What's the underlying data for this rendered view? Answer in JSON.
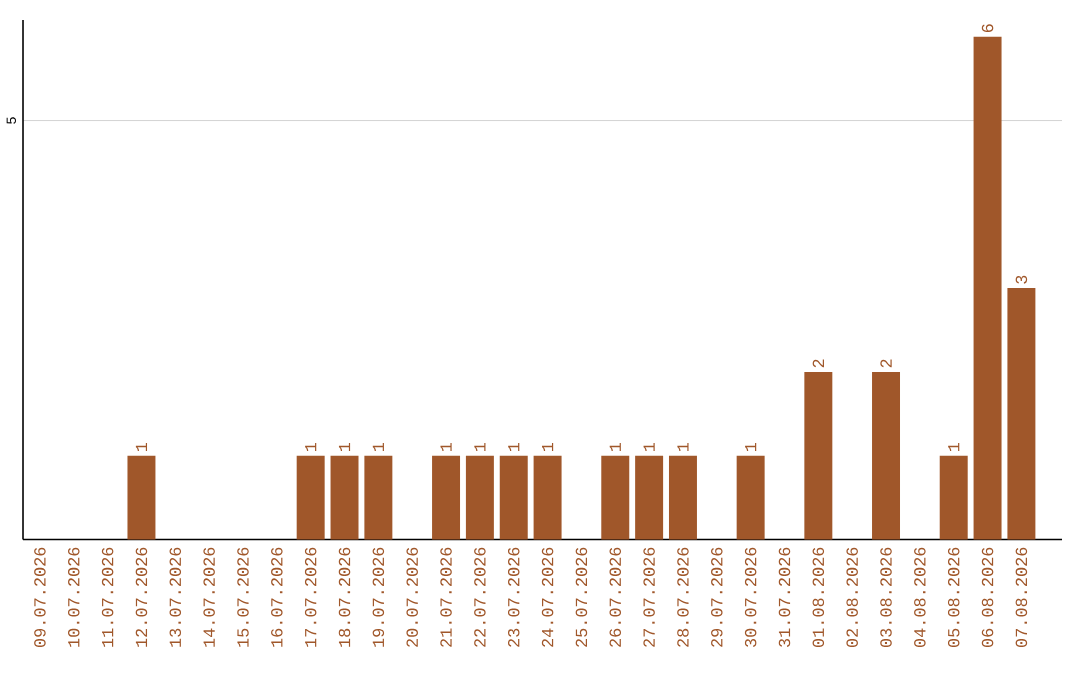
{
  "chart_data": {
    "type": "bar",
    "categories": [
      "09.07.2026",
      "10.07.2026",
      "11.07.2026",
      "12.07.2026",
      "13.07.2026",
      "14.07.2026",
      "15.07.2026",
      "16.07.2026",
      "17.07.2026",
      "18.07.2026",
      "19.07.2026",
      "20.07.2026",
      "21.07.2026",
      "22.07.2026",
      "23.07.2026",
      "24.07.2026",
      "25.07.2026",
      "26.07.2026",
      "27.07.2026",
      "28.07.2026",
      "29.07.2026",
      "30.07.2026",
      "31.07.2026",
      "01.08.2026",
      "02.08.2026",
      "03.08.2026",
      "04.08.2026",
      "05.08.2026",
      "06.08.2026",
      "07.08.2026"
    ],
    "values": [
      0,
      0,
      0,
      1,
      0,
      0,
      0,
      0,
      1,
      1,
      1,
      0,
      1,
      1,
      1,
      1,
      0,
      1,
      1,
      1,
      0,
      1,
      0,
      2,
      0,
      2,
      0,
      1,
      6,
      3
    ],
    "value_labels": [
      null,
      null,
      null,
      "1",
      null,
      null,
      null,
      null,
      "1",
      "1",
      "1",
      null,
      "1",
      "1",
      "1",
      "1",
      null,
      "1",
      "1",
      "1",
      null,
      "1",
      null,
      "2",
      null,
      "2",
      null,
      "1",
      "6",
      "3"
    ],
    "color": "#a0572a",
    "ylim": [
      0,
      6.2
    ],
    "yticks": [
      5
    ],
    "grid": "y"
  }
}
